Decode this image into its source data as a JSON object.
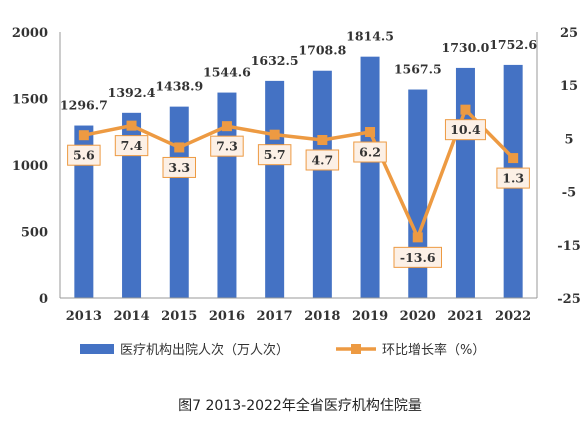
{
  "chart_data": {
    "type": "bar",
    "caption": "图7    2013-2022年全省医疗机构住院量",
    "categories": [
      "2013",
      "2014",
      "2015",
      "2016",
      "2017",
      "2018",
      "2019",
      "2020",
      "2021",
      "2022"
    ],
    "series": [
      {
        "name": "医疗机构出院人次（万人次）",
        "type": "bar",
        "axis": "left",
        "color": "#4472C4",
        "values": [
          1296.7,
          1392.4,
          1438.9,
          1544.6,
          1632.5,
          1708.8,
          1814.5,
          1567.5,
          1730.0,
          1752.6
        ],
        "labels": [
          "1296.7",
          "1392.4",
          "1438.9",
          "1544.6",
          "1632.5",
          "1708.8",
          "1814.5",
          "1567.5",
          "1730.0",
          "1752.6"
        ]
      },
      {
        "name": "环比增长率（%）",
        "type": "line",
        "axis": "right",
        "color": "#ED9A42",
        "values": [
          5.6,
          7.4,
          3.3,
          7.3,
          5.7,
          4.7,
          6.2,
          -13.6,
          10.4,
          1.3
        ],
        "labels": [
          "5.6",
          "7.4",
          "3.3",
          "7.3",
          "5.7",
          "4.7",
          "6.2",
          "-13.6",
          "10.4",
          "1.3"
        ]
      }
    ],
    "y_left": {
      "min": 0,
      "max": 2000,
      "ticks": [
        "0",
        "500",
        "1000",
        "1500",
        "2000"
      ],
      "tick_values": [
        0,
        500,
        1000,
        1500,
        2000
      ]
    },
    "y_right": {
      "min": -25,
      "max": 25,
      "ticks": [
        "-25",
        "-15",
        "-5",
        "5",
        "15",
        "25"
      ],
      "tick_values": [
        -25,
        -15,
        -5,
        5,
        15,
        25
      ]
    },
    "grid": false,
    "legend_position": "bottom"
  }
}
